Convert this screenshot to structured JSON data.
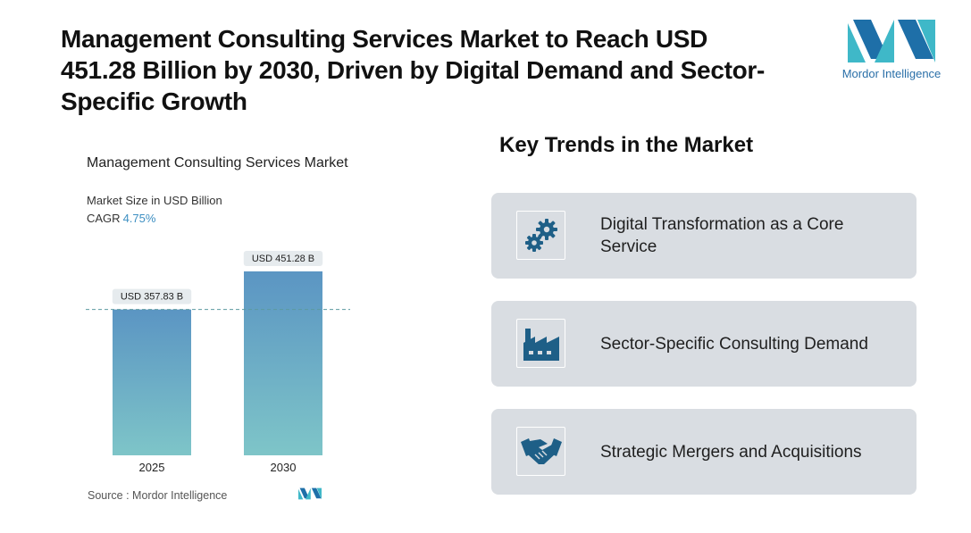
{
  "headline": "Management Consulting Services Market to Reach USD 451.28 Billion by 2030, Driven by Digital Demand and Sector-Specific Growth",
  "brand": {
    "name": "Mordor Intelligence",
    "colors": {
      "blue": "#1e6fa8",
      "teal": "#3fb8c8"
    }
  },
  "chart": {
    "title": "Management Consulting Services Market",
    "subtitle": "Market Size in USD Billion",
    "cagr_label": "CAGR",
    "cagr_value": "4.75%",
    "source_label": "Source :",
    "source_name": "Mordor Intelligence"
  },
  "chart_data": {
    "type": "bar",
    "categories": [
      "2025",
      "2030"
    ],
    "values": [
      357.83,
      451.28
    ],
    "data_labels": [
      "USD 357.83 B",
      "USD 451.28 B"
    ],
    "title": "Management Consulting Services Market",
    "ylabel": "Market Size in USD Billion",
    "ylim": [
      0,
      460
    ],
    "grid": false,
    "reference_line": {
      "value": 357.83,
      "style": "dashed"
    },
    "bar_gradient": {
      "top": "#5b95c3",
      "bottom": "#7ec5c8"
    }
  },
  "trends": {
    "title": "Key Trends in the Market",
    "items": [
      {
        "label": "Digital Transformation as a Core Service",
        "icon": "gears-icon"
      },
      {
        "label": "Sector-Specific Consulting Demand",
        "icon": "factory-icon"
      },
      {
        "label": "Strategic Mergers and Acquisitions",
        "icon": "handshake-icon"
      }
    ],
    "card_color": "#d9dde2",
    "icon_color": "#1e5f87"
  }
}
